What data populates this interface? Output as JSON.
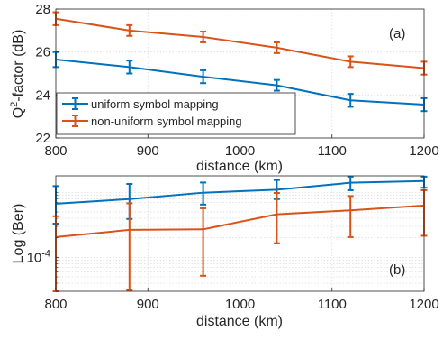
{
  "chart_data": [
    {
      "panel": "(a)",
      "type": "line",
      "xlabel": "distance (km)",
      "ylabel_base": "Q",
      "ylabel_sup": "2",
      "ylabel_rest": "-factor (dB)",
      "xlim": [
        800,
        1200
      ],
      "ylim": [
        22,
        28
      ],
      "x_ticks": [
        "800",
        "900",
        "1000",
        "1100",
        "1200"
      ],
      "y_ticks": [
        "22",
        "24",
        "26",
        "28"
      ],
      "grid": true,
      "legend_position": "bottom-left",
      "series": [
        {
          "name": "uniform symbol mapping",
          "color": "#0072BD",
          "x": [
            800,
            880,
            960,
            1040,
            1120,
            1200
          ],
          "y": [
            25.65,
            25.3,
            24.85,
            24.45,
            23.75,
            23.55
          ],
          "err": [
            0.35,
            0.3,
            0.3,
            0.25,
            0.3,
            0.3
          ]
        },
        {
          "name": "non-uniform symbol mapping",
          "color": "#D95319",
          "x": [
            800,
            880,
            960,
            1040,
            1120,
            1200
          ],
          "y": [
            27.55,
            27.0,
            26.7,
            26.2,
            25.55,
            25.25
          ],
          "err": [
            0.3,
            0.25,
            0.25,
            0.25,
            0.25,
            0.3
          ]
        }
      ]
    },
    {
      "panel": "(b)",
      "type": "line",
      "xlabel": "distance (km)",
      "ylabel": "Log (Ber)",
      "xlim": [
        800,
        1200
      ],
      "y_scale": "log",
      "ylim": [
        3e-05,
        0.0018
      ],
      "x_ticks": [
        "800",
        "900",
        "1000",
        "1100",
        "1200"
      ],
      "y_tick_base": "10",
      "y_tick_exp": "-4",
      "y_tick_value": 0.0001,
      "grid": true,
      "series": [
        {
          "color": "#0072BD",
          "x": [
            800,
            880,
            960,
            1040,
            1120,
            1200
          ],
          "y": [
            0.00067,
            0.00079,
            0.00099,
            0.0011,
            0.00141,
            0.0015
          ],
          "lo": [
            0.00033,
            0.00039,
            0.00065,
            0.00079,
            0.00108,
            0.00118
          ],
          "hi": [
            0.00125,
            0.00135,
            0.00142,
            0.00155,
            0.00175,
            0.00175
          ]
        },
        {
          "color": "#D95319",
          "x": [
            800,
            880,
            960,
            1040,
            1120,
            1200
          ],
          "y": [
            0.000205,
            0.000265,
            0.00027,
            0.00046,
            0.00053,
            0.00063
          ],
          "lo": [
            3e-05,
            3.1e-05,
            5.2e-05,
            0.000165,
            0.000205,
            0.000215
          ],
          "hi": [
            0.00043,
            0.00068,
            0.00057,
            0.00098,
            0.00088,
            0.00108
          ]
        }
      ]
    }
  ]
}
